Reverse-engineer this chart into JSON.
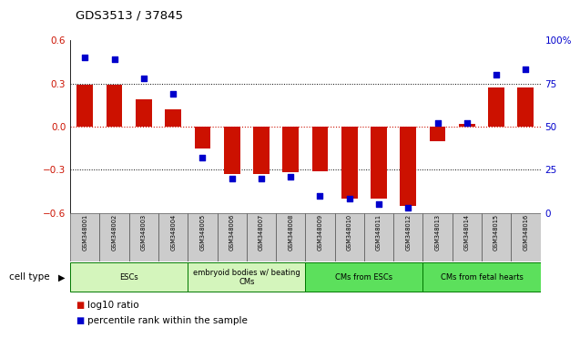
{
  "title": "GDS3513 / 37845",
  "samples": [
    "GSM348001",
    "GSM348002",
    "GSM348003",
    "GSM348004",
    "GSM348005",
    "GSM348006",
    "GSM348007",
    "GSM348008",
    "GSM348009",
    "GSM348010",
    "GSM348011",
    "GSM348012",
    "GSM348013",
    "GSM348014",
    "GSM348015",
    "GSM348016"
  ],
  "log10_ratio": [
    0.29,
    0.29,
    0.19,
    0.12,
    -0.15,
    -0.33,
    -0.33,
    -0.32,
    -0.31,
    -0.5,
    -0.5,
    -0.55,
    -0.1,
    0.02,
    0.27,
    0.27
  ],
  "percentile_rank": [
    90,
    89,
    78,
    69,
    32,
    20,
    20,
    21,
    10,
    8,
    5,
    3,
    52,
    52,
    80,
    83
  ],
  "cell_type_groups": [
    {
      "label": "ESCs",
      "start": 0,
      "end": 3,
      "color": "#d4f5bc"
    },
    {
      "label": "embryoid bodies w/ beating\nCMs",
      "start": 4,
      "end": 7,
      "color": "#d4f5bc"
    },
    {
      "label": "CMs from ESCs",
      "start": 8,
      "end": 11,
      "color": "#5ce05c"
    },
    {
      "label": "CMs from fetal hearts",
      "start": 12,
      "end": 15,
      "color": "#5ce05c"
    }
  ],
  "bar_color": "#cc1100",
  "dot_color": "#0000cc",
  "ylim_left": [
    -0.6,
    0.6
  ],
  "ylim_right": [
    0,
    100
  ],
  "yticks_left": [
    -0.6,
    -0.3,
    0.0,
    0.3,
    0.6
  ],
  "yticks_right": [
    0,
    25,
    50,
    75,
    100
  ],
  "ytick_labels_right": [
    "0",
    "25",
    "50",
    "75",
    "100%"
  ],
  "hlines_dotted": [
    -0.3,
    0.3
  ],
  "hline_red_dotted": 0.0,
  "background_color": "#ffffff"
}
